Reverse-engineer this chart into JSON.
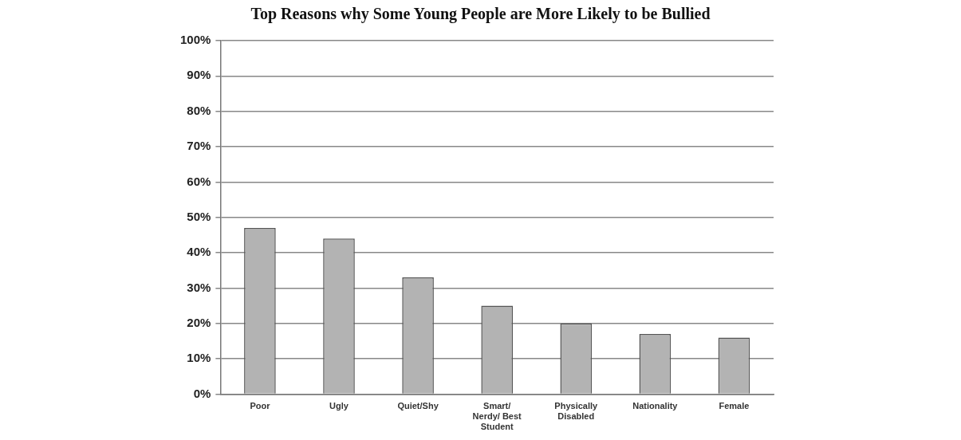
{
  "chart_data": {
    "type": "bar",
    "title": "Top Reasons why Some Young People are More Likely to be Bullied",
    "categories": [
      "Poor",
      "Ugly",
      "Quiet/Shy",
      "Smart/ Nerdy/ Best Student",
      "Physically Disabled",
      "Nationality",
      "Female"
    ],
    "values": [
      47,
      44,
      33,
      25,
      20,
      17,
      16
    ],
    "color": "#b3b3b3",
    "ylim": [
      0,
      100
    ],
    "yticks": [
      {
        "value": 0,
        "label": "0%"
      },
      {
        "value": 10,
        "label": "10%"
      },
      {
        "value": 20,
        "label": "20%"
      },
      {
        "value": 30,
        "label": "30%"
      },
      {
        "value": 40,
        "label": "40%"
      },
      {
        "value": 50,
        "label": "50%"
      },
      {
        "value": 60,
        "label": "60%"
      },
      {
        "value": 70,
        "label": "70%"
      },
      {
        "value": 80,
        "label": "80%"
      },
      {
        "value": 90,
        "label": "90%"
      },
      {
        "value": 100,
        "label": "100%"
      }
    ],
    "grid": "y",
    "legend": false
  }
}
